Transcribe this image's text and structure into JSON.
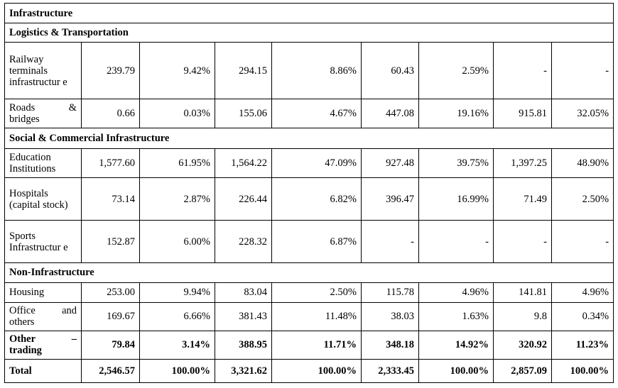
{
  "table": {
    "sections": [
      {
        "title": "Infrastructure",
        "rows": []
      },
      {
        "title": "Logistics & Transportation",
        "rows": [
          {
            "label": "Railway terminals infrastructur e",
            "values": [
              "239.79",
              "9.42%",
              "294.15",
              "8.86%",
              "60.43",
              "2.59%",
              "-",
              "-"
            ]
          },
          {
            "label": "Roads & bridges",
            "values": [
              "0.66",
              "0.03%",
              "155.06",
              "4.67%",
              "447.08",
              "19.16%",
              "915.81",
              "32.05%"
            ]
          }
        ]
      },
      {
        "title": "Social & Commercial Infrastructure",
        "rows": [
          {
            "label": "Education Institutions",
            "values": [
              "1,577.60",
              "61.95%",
              "1,564.22",
              "47.09%",
              "927.48",
              "39.75%",
              "1,397.25",
              "48.90%"
            ]
          },
          {
            "label": "Hospitals (capital stock)",
            "values": [
              "73.14",
              "2.87%",
              "226.44",
              "6.82%",
              "396.47",
              "16.99%",
              "71.49",
              "2.50%"
            ]
          },
          {
            "label": "Sports Infrastructur e",
            "values": [
              "152.87",
              "6.00%",
              "228.32",
              "6.87%",
              "-",
              "-",
              "-",
              "-"
            ]
          }
        ]
      },
      {
        "title": "Non-Infrastructure",
        "rows": [
          {
            "label": "Housing",
            "values": [
              "253.00",
              "9.94%",
              "83.04",
              "2.50%",
              "115.78",
              "4.96%",
              "141.81",
              "4.96%"
            ]
          },
          {
            "label": "Office and others",
            "values": [
              "169.67",
              "6.66%",
              "381.43",
              "11.48%",
              "38.03",
              "1.63%",
              "9.8",
              "0.34%"
            ]
          },
          {
            "label": "Other – trading",
            "bold": true,
            "values": [
              "79.84",
              "3.14%",
              "388.95",
              "11.71%",
              "348.18",
              "14.92%",
              "320.92",
              "11.23%"
            ]
          }
        ]
      }
    ],
    "total": {
      "label": "Total",
      "values": [
        "2,546.57",
        "100.00%",
        "3,321.62",
        "100.00%",
        "2,333.45",
        "100.00%",
        "2,857.09",
        "100.00%"
      ]
    }
  }
}
